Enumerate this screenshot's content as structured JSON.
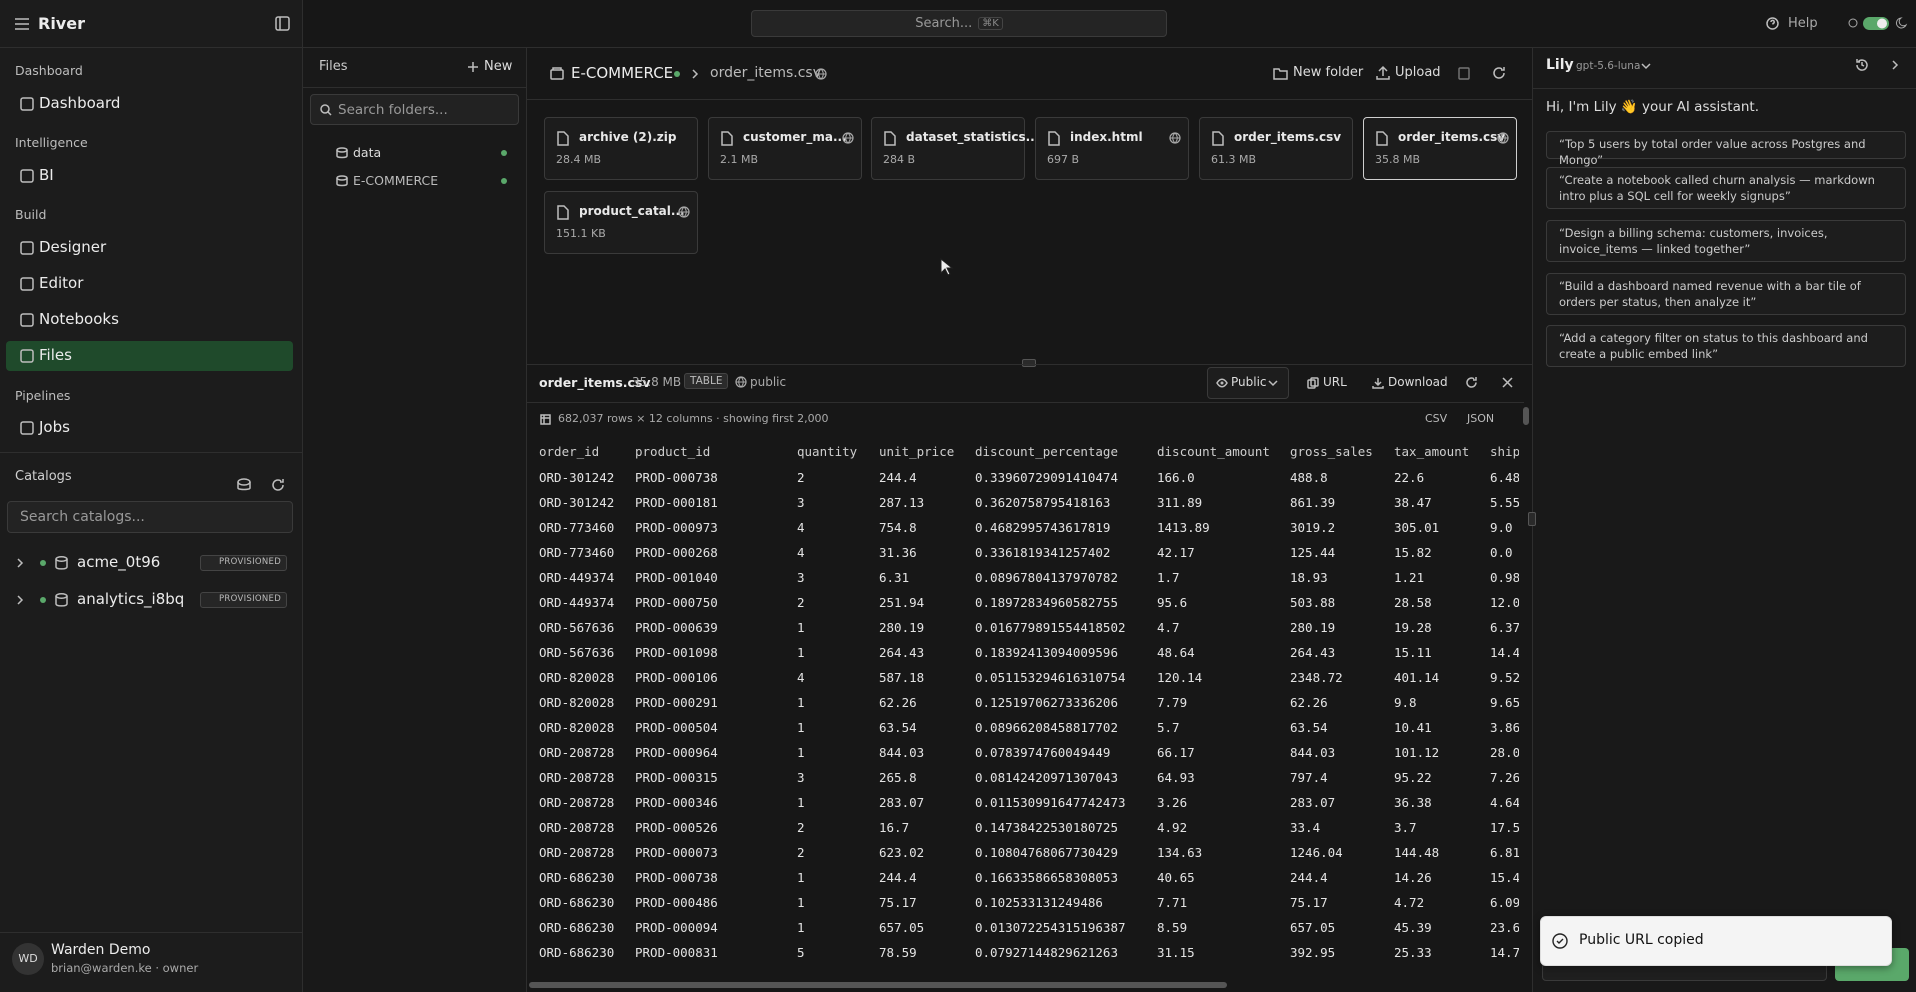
{
  "app": {
    "name": "River",
    "search": "Search...",
    "shortcut": "⌘K",
    "help": "Help"
  },
  "sidebar": {
    "sections": [
      {
        "title": "Dashboard",
        "items": [
          {
            "label": "Dashboard",
            "active": false
          }
        ]
      },
      {
        "title": "Intelligence",
        "items": [
          {
            "label": "BI",
            "active": false
          }
        ]
      },
      {
        "title": "Build",
        "items": [
          {
            "label": "Designer",
            "active": false
          },
          {
            "label": "Editor",
            "active": false
          },
          {
            "label": "Notebooks",
            "active": false
          },
          {
            "label": "Files",
            "active": true
          }
        ]
      },
      {
        "title": "Pipelines",
        "items": [
          {
            "label": "Jobs",
            "active": false
          }
        ]
      }
    ],
    "catalogs": {
      "title": "Catalogs",
      "search": "Search catalogs...",
      "items": [
        {
          "name": "acme_0t96",
          "badge": "PROVISIONED"
        },
        {
          "name": "analytics_i8bq",
          "badge": "PROVISIONED"
        }
      ]
    },
    "user": {
      "initials": "WD",
      "name": "Warden Demo",
      "email": "brian@warden.ke · owner"
    }
  },
  "files_panel": {
    "title": "Files",
    "new": "New",
    "search": "Search folders...",
    "folders": [
      "data",
      "E-COMMERCE"
    ]
  },
  "browser": {
    "breadcrumb": [
      "E-COMMERCE",
      "order_items.csv"
    ],
    "actions": [
      "New folder",
      "Upload"
    ],
    "files": [
      {
        "name": "archive (2).zip",
        "size": "28.4 MB",
        "public": false,
        "selected": false
      },
      {
        "name": "customer_ma...",
        "size": "2.1 MB",
        "public": true,
        "selected": false
      },
      {
        "name": "dataset_statistics...",
        "size": "284 B",
        "public": false,
        "selected": false
      },
      {
        "name": "index.html",
        "size": "697 B",
        "public": true,
        "selected": false
      },
      {
        "name": "order_items.csv",
        "size": "61.3 MB",
        "public": false,
        "selected": false
      },
      {
        "name": "order_items.csv",
        "size": "35.8 MB",
        "public": true,
        "selected": true
      },
      {
        "name": "product_catal...",
        "size": "151.1 KB",
        "public": true,
        "selected": false
      }
    ]
  },
  "preview": {
    "name": "order_items.csv",
    "size": "35.8 MB",
    "kind": "TABLE",
    "visibility": "public",
    "share": "Public",
    "actions": [
      "URL",
      "Download"
    ],
    "summary": "682,037 rows × 12 columns · showing first 2,000",
    "formats": [
      "CSV",
      "JSON"
    ],
    "table": {
      "columns": [
        "order_id",
        "product_id",
        "quantity",
        "unit_price",
        "discount_percentage",
        "discount_amount",
        "gross_sales",
        "tax_amount",
        "ship"
      ],
      "rows": [
        [
          "ORD-301242",
          "PROD-000738",
          "2",
          "244.4",
          "0.33960729091410474",
          "166.0",
          "488.8",
          "22.6",
          "6.48"
        ],
        [
          "ORD-301242",
          "PROD-000181",
          "3",
          "287.13",
          "0.3620758795418163",
          "311.89",
          "861.39",
          "38.47",
          "5.55"
        ],
        [
          "ORD-773460",
          "PROD-000973",
          "4",
          "754.8",
          "0.4682995743617819",
          "1413.89",
          "3019.2",
          "305.01",
          "9.0"
        ],
        [
          "ORD-773460",
          "PROD-000268",
          "4",
          "31.36",
          "0.3361819341257402",
          "42.17",
          "125.44",
          "15.82",
          "0.0"
        ],
        [
          "ORD-449374",
          "PROD-001040",
          "3",
          "6.31",
          "0.08967804137970782",
          "1.7",
          "18.93",
          "1.21",
          "0.98"
        ],
        [
          "ORD-449374",
          "PROD-000750",
          "2",
          "251.94",
          "0.18972834960582755",
          "95.6",
          "503.88",
          "28.58",
          "12.0"
        ],
        [
          "ORD-567636",
          "PROD-000639",
          "1",
          "280.19",
          "0.016779891554418502",
          "4.7",
          "280.19",
          "19.28",
          "6.37"
        ],
        [
          "ORD-567636",
          "PROD-001098",
          "1",
          "264.43",
          "0.18392413094009596",
          "48.64",
          "264.43",
          "15.11",
          "14.4"
        ],
        [
          "ORD-820028",
          "PROD-000106",
          "4",
          "587.18",
          "0.051153294616310754",
          "120.14",
          "2348.72",
          "401.14",
          "9.52"
        ],
        [
          "ORD-820028",
          "PROD-000291",
          "1",
          "62.26",
          "0.12519706273336206",
          "7.79",
          "62.26",
          "9.8",
          "9.65"
        ],
        [
          "ORD-820028",
          "PROD-000504",
          "1",
          "63.54",
          "0.08966208458817702",
          "5.7",
          "63.54",
          "10.41",
          "3.86"
        ],
        [
          "ORD-208728",
          "PROD-000964",
          "1",
          "844.03",
          "0.0783974760049449",
          "66.17",
          "844.03",
          "101.12",
          "28.0"
        ],
        [
          "ORD-208728",
          "PROD-000315",
          "3",
          "265.8",
          "0.08142420971307043",
          "64.93",
          "797.4",
          "95.22",
          "7.26"
        ],
        [
          "ORD-208728",
          "PROD-000346",
          "1",
          "283.07",
          "0.011530991647742473",
          "3.26",
          "283.07",
          "36.38",
          "4.64"
        ],
        [
          "ORD-208728",
          "PROD-000526",
          "2",
          "16.7",
          "0.14738422530180725",
          "4.92",
          "33.4",
          "3.7",
          "17.5"
        ],
        [
          "ORD-208728",
          "PROD-000073",
          "2",
          "623.02",
          "0.10804768067730429",
          "134.63",
          "1246.04",
          "144.48",
          "6.81"
        ],
        [
          "ORD-686230",
          "PROD-000738",
          "1",
          "244.4",
          "0.16633586658308053",
          "40.65",
          "244.4",
          "14.26",
          "15.4"
        ],
        [
          "ORD-686230",
          "PROD-000486",
          "1",
          "75.17",
          "0.102533131249486",
          "7.71",
          "75.17",
          "4.72",
          "6.09"
        ],
        [
          "ORD-686230",
          "PROD-000094",
          "1",
          "657.05",
          "0.013072254315196387",
          "8.59",
          "657.05",
          "45.39",
          "23.6"
        ],
        [
          "ORD-686230",
          "PROD-000831",
          "5",
          "78.59",
          "0.07927144829621263",
          "31.15",
          "392.95",
          "25.33",
          "14.7"
        ]
      ]
    }
  },
  "assistant": {
    "name": "Lily",
    "model": "gpt-5.6-luna",
    "greeting": "Hi, I'm Lily 👋 your AI assistant.",
    "suggestions": [
      "“Top 5 users by total order value across Postgres and Mongo”",
      "“Create a notebook called churn analysis — markdown intro plus a SQL cell for weekly signups”",
      "“Design a billing schema: customers, invoices, invoice_items — linked together”",
      "“Build a dashboard named revenue with a bar tile of orders per status, then analyze it”",
      "“Add a category filter on status to this dashboard and create a public embed link”"
    ]
  },
  "toast": {
    "message": "Public URL copied"
  }
}
